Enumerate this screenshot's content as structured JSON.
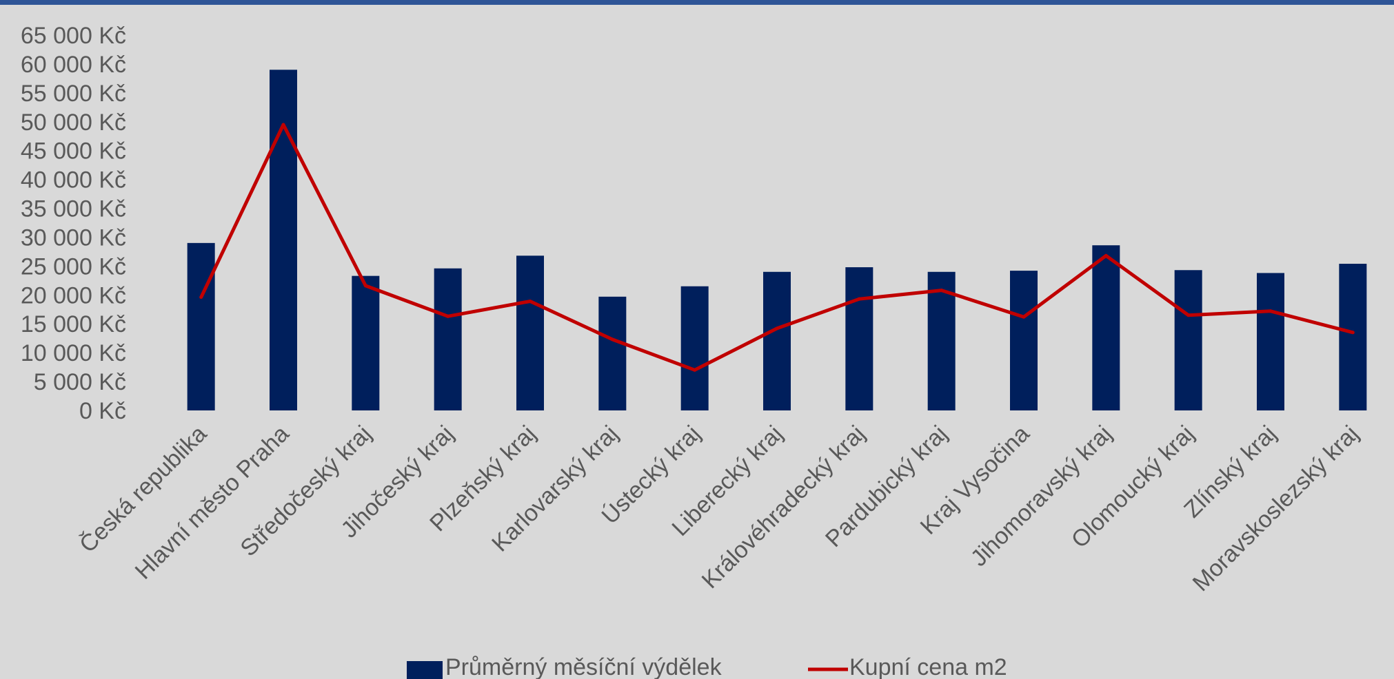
{
  "colors": {
    "background": "#d9d9d9",
    "top_bar": "#2f5597",
    "bar": "#001f5c",
    "line": "#c00000",
    "text": "#595959"
  },
  "chart_data": {
    "type": "bar",
    "title": "",
    "xlabel": "",
    "ylabel": "",
    "ylim": [
      0,
      65000
    ],
    "y_ticks": [
      0,
      5000,
      10000,
      15000,
      20000,
      25000,
      30000,
      35000,
      40000,
      45000,
      50000,
      55000,
      60000,
      65000
    ],
    "y_tick_labels": [
      "0 Kč",
      "5 000 Kč",
      "10 000 Kč",
      "15 000 Kč",
      "20 000 Kč",
      "25 000 Kč",
      "30 000 Kč",
      "35 000 Kč",
      "40 000 Kč",
      "45 000 Kč",
      "50 000 Kč",
      "55 000 Kč",
      "60 000 Kč",
      "65 000 Kč"
    ],
    "grid": false,
    "legend_position": "bottom",
    "categories": [
      "Česká republika",
      "Hlavní město Praha",
      "Středočeský kraj",
      "Jihočeský kraj",
      "Plzeňský kraj",
      "Karlovarský kraj",
      "Ústecký kraj",
      "Liberecký kraj",
      "Královéhradecký kraj",
      "Pardubický kraj",
      "Kraj Vysočina",
      "Jihomoravský kraj",
      "Olomoucký kraj",
      "Zlínský kraj",
      "Moravskoslezský kraj"
    ],
    "series": [
      {
        "name": "Průměrný  měsíční výdělek",
        "type": "bar",
        "values": [
          29000,
          59000,
          23300,
          24600,
          26800,
          19700,
          21500,
          24000,
          24800,
          24000,
          24200,
          28600,
          24300,
          23800,
          25400
        ]
      },
      {
        "name": "Kupní cena m2",
        "type": "line",
        "values": [
          19600,
          49500,
          21600,
          16300,
          18900,
          12300,
          7000,
          14200,
          19300,
          20800,
          16200,
          26800,
          16500,
          17200,
          13500
        ]
      }
    ]
  }
}
